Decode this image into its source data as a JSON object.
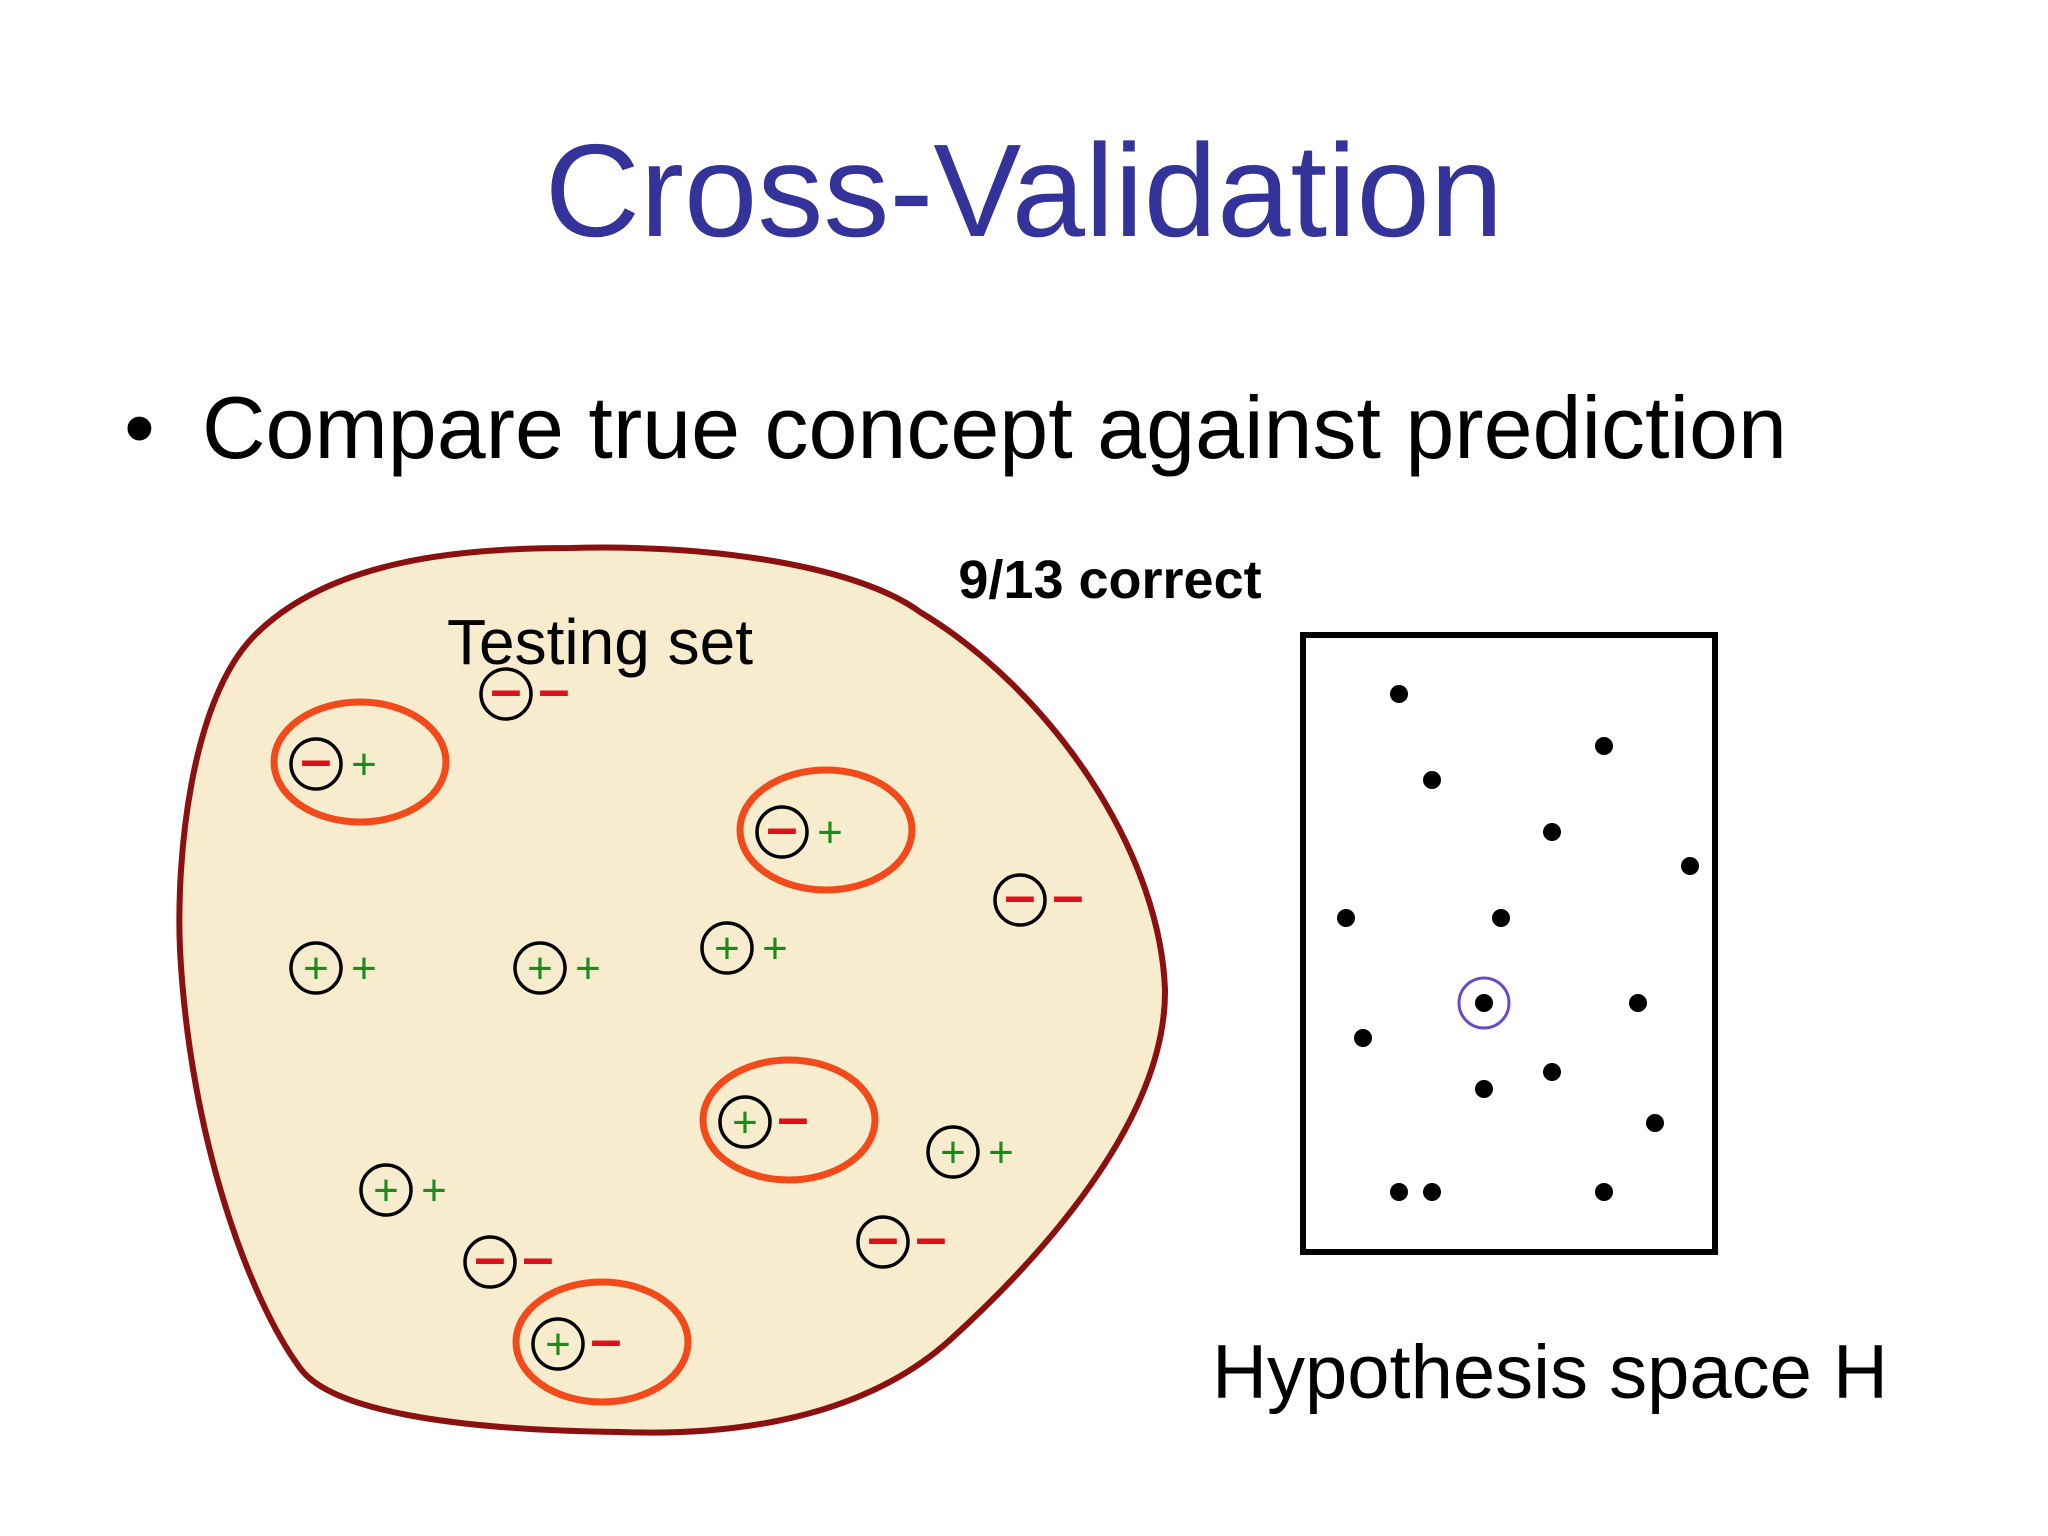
{
  "slide": {
    "title": "Cross-Validation",
    "bullet": "Compare true concept against prediction"
  },
  "diagram": {
    "testing_set_label": "Testing set",
    "score_label": "9/13 correct",
    "hypothesis_label": "Hypothesis space H",
    "colors": {
      "title": "#33339a",
      "positive": "#1a8c1a",
      "negative": "#e0101a",
      "error_ring": "#f24a1a",
      "blob_fill": "#f8ecce",
      "blob_stroke": "#8b1010",
      "selected_ring": "#6a48c8"
    },
    "symbols": {
      "positive": "+",
      "negative": "-"
    },
    "examples": [
      {
        "predicted": "-",
        "true": "-",
        "error": false
      },
      {
        "predicted": "-",
        "true": "+",
        "error": true
      },
      {
        "predicted": "-",
        "true": "+",
        "error": true
      },
      {
        "predicted": "-",
        "true": "-",
        "error": false
      },
      {
        "predicted": "+",
        "true": "+",
        "error": false
      },
      {
        "predicted": "+",
        "true": "+",
        "error": false
      },
      {
        "predicted": "+",
        "true": "+",
        "error": false
      },
      {
        "predicted": "+",
        "true": "-",
        "error": true
      },
      {
        "predicted": "+",
        "true": "+",
        "error": false
      },
      {
        "predicted": "+",
        "true": "+",
        "error": false
      },
      {
        "predicted": "-",
        "true": "-",
        "error": false
      },
      {
        "predicted": "-",
        "true": "-",
        "error": false
      },
      {
        "predicted": "+",
        "true": "-",
        "error": true
      }
    ],
    "hypothesis_points": 16,
    "selected_hypothesis_index": 9
  }
}
